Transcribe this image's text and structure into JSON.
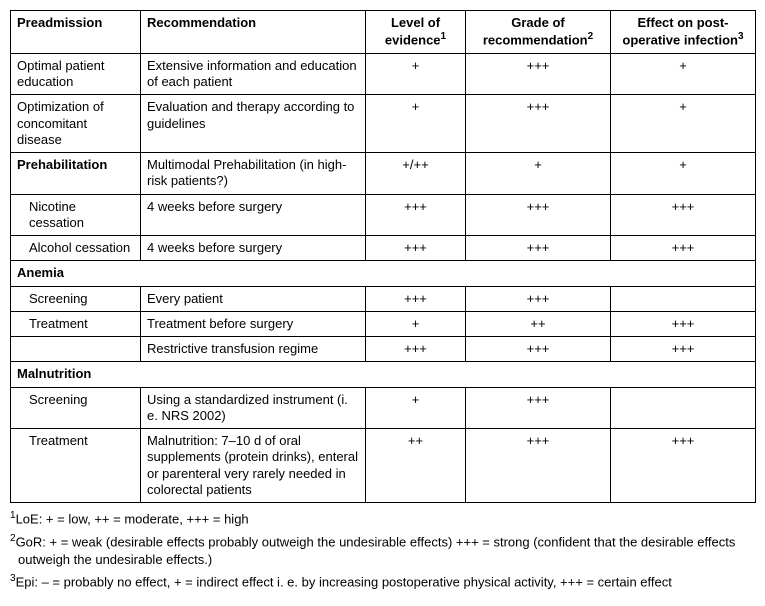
{
  "headers": {
    "preadmission": "Preadmission",
    "recommendation": "Recommendation",
    "loe": "Level of evidence",
    "gor": "Grade of recommendation",
    "epi": "Effect on post-operative infection",
    "sup1": "1",
    "sup2": "2",
    "sup3": "3"
  },
  "rows": [
    {
      "col1": "Optimal patient education",
      "col2": "Extensive information and education of each patient",
      "loe": "+",
      "gor": "+++",
      "epi": "+"
    },
    {
      "col1": "Optimization of concomitant disease",
      "col2": "Evaluation and therapy according to guidelines",
      "loe": "+",
      "gor": "+++",
      "epi": "+"
    },
    {
      "col1": "Prehabilitation",
      "col1_bold": true,
      "col2": "Multimodal Prehabilitation (in high-risk patients?)",
      "loe": "+/++",
      "gor": "+",
      "epi": "+"
    },
    {
      "col1": "Nicotine cessation",
      "indent": true,
      "col2": "4 weeks before surgery",
      "loe": "+++",
      "gor": "+++",
      "epi": "+++"
    },
    {
      "col1": "Alcohol cessation",
      "indent": true,
      "col2": "4 weeks before surgery",
      "loe": "+++",
      "gor": "+++",
      "epi": "+++"
    },
    {
      "col1": "Anemia",
      "col1_bold": true,
      "span": true
    },
    {
      "col1": "Screening",
      "indent": true,
      "col2": "Every patient",
      "loe": "+++",
      "gor": "+++",
      "epi": ""
    },
    {
      "col1": "Treatment",
      "indent": true,
      "col2": "Treatment before surgery",
      "loe": "+",
      "gor": "++",
      "epi": "+++"
    },
    {
      "col1": "",
      "col2": "Restrictive transfusion regime",
      "loe": "+++",
      "gor": "+++",
      "epi": "+++"
    },
    {
      "col1": "Malnutrition",
      "col1_bold": true,
      "span": true
    },
    {
      "col1": "Screening",
      "indent": true,
      "col2": "Using a standardized instrument (i. e. NRS 2002)",
      "loe": "+",
      "gor": "+++",
      "epi": ""
    },
    {
      "col1": "Treatment",
      "indent": true,
      "col2": "Malnutrition: 7–10 d of oral supplements (protein drinks), enteral or parenteral very rarely needed in colorectal patients",
      "loe": "++",
      "gor": "+++",
      "epi": "+++"
    }
  ],
  "footnotes": {
    "f1_sup": "1",
    "f1": "LoE: + = low, ++ = moderate, +++ = high",
    "f2_sup": "2",
    "f2": "GoR: + = weak (desirable effects probably outweigh the undesirable effects) +++ = strong (confident that the desirable effects outweigh the undesirable effects.)",
    "f3_sup": "3",
    "f3": "Epi: – = probably no effect, + = indirect effect i. e. by increasing postoperative physical activity, +++ = certain effect"
  }
}
